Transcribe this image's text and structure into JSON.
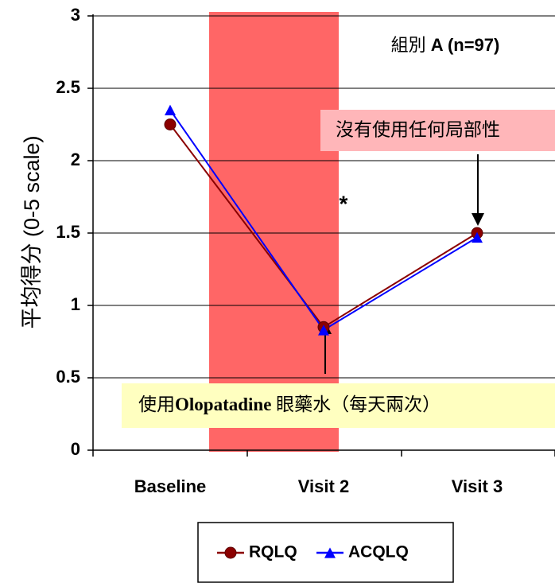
{
  "chart_data": {
    "type": "line",
    "title": "",
    "xlabel": "",
    "ylabel": "平均得分 (0-5 scale)",
    "ylim": [
      0,
      3
    ],
    "yticks": [
      "0",
      "0.5",
      "1",
      "1.5",
      "2",
      "2.5",
      "3"
    ],
    "categories": [
      "Baseline",
      "Visit 2",
      "Visit 3"
    ],
    "series": [
      {
        "name": "RQLQ",
        "values": [
          2.25,
          0.85,
          1.5
        ],
        "color": "#8B0000",
        "marker": "circle"
      },
      {
        "name": "ACQLQ",
        "values": [
          2.35,
          0.83,
          1.47
        ],
        "color": "#0000FF",
        "marker": "triangle"
      }
    ],
    "grid": true,
    "legend_position": "bottom",
    "shaded_region": {
      "from": "Baseline",
      "to": "Visit 2",
      "color": "#FF6666"
    },
    "annotations": {
      "group_label_prefix": "組別 ",
      "group_label_bold": "A (n=97)",
      "significance": "*",
      "treatment_prefix": "使用",
      "treatment_bold": "Olopatadine",
      "treatment_suffix": " 眼藥水（每天兩次）",
      "no_treatment": "沒有使用任何局部性"
    }
  }
}
